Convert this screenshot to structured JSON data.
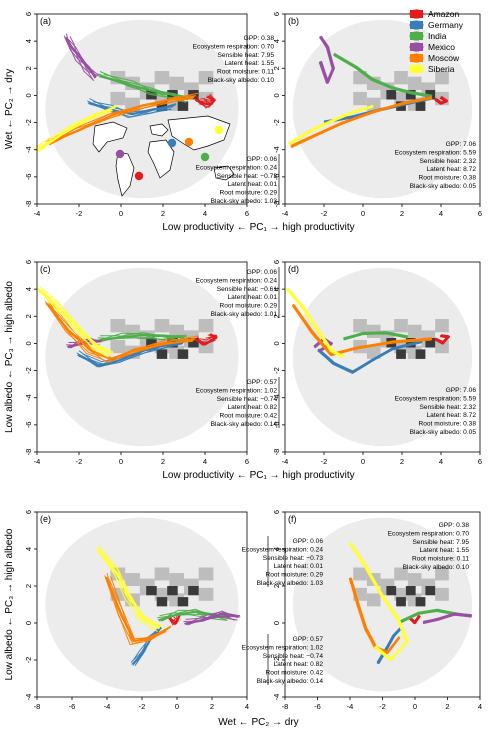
{
  "colors": {
    "Amazon": "#e41a1c",
    "Germany": "#377eb8",
    "India": "#4daf4a",
    "Mexico": "#984ea3",
    "Moscow": "#ff7f00",
    "Siberia": "#ffff33",
    "background_light": "#ececec",
    "background_mid": "#bdbdbd",
    "background_dark": "#3a3a3a"
  },
  "legend": {
    "entries": [
      "Amazon",
      "Germany",
      "India",
      "Mexico",
      "Moscow",
      "Siberia"
    ]
  },
  "axis_labels": {
    "x_pc1": "Low productivity ← PC₁ → high productivity",
    "y_pc2": "Wet ← PC₂ → dry",
    "y_pc3": "Low albedo ← PC₃ → high albedo",
    "x_pc2": "Wet ← PC₂ → dry"
  },
  "annotations": {
    "high_gpp_dry": [
      "GPP: 0.38",
      "Ecosystem respiration: 0.70",
      "Sensible heat: 7.95",
      "Latent heat: 1.55",
      "Root moisture: 0.11",
      "Black-sky albedo: 0.10"
    ],
    "amazon_high": [
      "GPP: 7.06",
      "Ecosystem respiration: 5.59",
      "Sensible heat: 2.32",
      "Latent heat: 8.72",
      "Root moisture: 0.38",
      "Black-sky albedo: 0.05"
    ],
    "siberia_b": [
      "GPP: 0.06",
      "Ecosystem respiration: 0.24",
      "Sensible heat: −0.73",
      "Latent heat: 0.01",
      "Root moisture: 0.29",
      "Black-sky albedo: 1.03"
    ],
    "siberia_c": [
      "GPP: 0.06",
      "Ecosystem respiration: 0.24",
      "Sensible heat: −0.61",
      "Latent heat: 0.01",
      "Root moisture: 0.29",
      "Black-sky albedo: 1.01"
    ],
    "germany_low": [
      "GPP: 0.57",
      "Ecosystem respiration: 1.02",
      "Sensible heat: −0.74",
      "Latent heat: 0.82",
      "Root moisture: 0.42",
      "Black-sky albedo: 0.14"
    ]
  },
  "chart_data": [
    {
      "panel": "(a)",
      "type": "line",
      "xlabel": "Low productivity ← PC₁ → high productivity",
      "ylabel": "Wet ← PC₂ → dry",
      "xlim": [
        -4,
        6
      ],
      "ylim": [
        -8,
        6
      ],
      "xticks": [
        -4,
        -2,
        0,
        2,
        4,
        6
      ],
      "yticks": [
        -8,
        -6,
        -4,
        -2,
        0,
        2,
        4,
        6
      ],
      "inset": "world map with site markers",
      "series": [
        {
          "name": "Amazon",
          "x": [
            3.6,
            3.9,
            4.2,
            4.4,
            4.1
          ],
          "y": [
            -0.3,
            -0.5,
            -0.7,
            -0.4,
            -0.1
          ]
        },
        {
          "name": "Germany",
          "x": [
            -1.5,
            -0.5,
            0.5,
            1.5,
            2.5
          ],
          "y": [
            -0.5,
            -1.0,
            -1.4,
            -1.1,
            -0.8
          ]
        },
        {
          "name": "India",
          "x": [
            -1.0,
            0.5,
            1.5,
            2.5,
            3.2
          ],
          "y": [
            1.5,
            0.8,
            0.3,
            0.0,
            -0.3
          ]
        },
        {
          "name": "Mexico",
          "x": [
            -2.6,
            -2.3,
            -2.0,
            -1.6,
            -1.2
          ],
          "y": [
            4.3,
            3.5,
            2.8,
            2.0,
            1.3
          ]
        },
        {
          "name": "Moscow",
          "x": [
            -3.5,
            -2.0,
            -0.5,
            1.0,
            2.5,
            3.5
          ],
          "y": [
            -3.5,
            -2.5,
            -1.5,
            -0.8,
            -0.3,
            -0.1
          ]
        },
        {
          "name": "Siberia",
          "x": [
            -4.0,
            -3.2,
            -2.3,
            -1.3,
            -0.3
          ],
          "y": [
            -4.0,
            -3.2,
            -2.3,
            -1.5,
            -0.9
          ]
        }
      ]
    },
    {
      "panel": "(b)",
      "type": "line",
      "xlim": [
        -4,
        6
      ],
      "ylim": [
        -8,
        6
      ],
      "xticks": [
        -4,
        -2,
        0,
        2,
        4,
        6
      ],
      "yticks": [
        -8,
        -6,
        -4,
        -2,
        0,
        2,
        4,
        6
      ],
      "series": [
        {
          "name": "Amazon",
          "x": [
            3.7,
            4.0,
            4.3,
            4.0
          ],
          "y": [
            -0.3,
            -0.6,
            -0.4,
            -0.1
          ]
        },
        {
          "name": "Germany",
          "x": [
            -2.0,
            -0.5,
            1.0,
            2.5,
            3.5
          ],
          "y": [
            -2.0,
            -1.6,
            -1.0,
            -0.5,
            -0.2
          ]
        },
        {
          "name": "India",
          "x": [
            -1.5,
            -0.3,
            0.5,
            1.5,
            2.5,
            3.5
          ],
          "y": [
            3.0,
            2.0,
            1.2,
            0.6,
            0.2,
            -0.1
          ]
        },
        {
          "name": "Mexico",
          "x": [
            -2.2,
            -1.8,
            -1.5,
            -1.8,
            -2.2
          ],
          "y": [
            4.3,
            3.5,
            2.0,
            1.0,
            2.5
          ]
        },
        {
          "name": "Moscow",
          "x": [
            -3.7,
            -2.5,
            -1.0,
            0.5,
            2.0,
            3.5
          ],
          "y": [
            -3.8,
            -3.0,
            -2.0,
            -1.2,
            -0.6,
            -0.2
          ]
        },
        {
          "name": "Siberia",
          "x": [
            -3.8,
            -2.5,
            -1.3,
            -0.5,
            0.5
          ],
          "y": [
            -3.6,
            -2.5,
            -1.7,
            -1.2,
            -0.8
          ]
        }
      ]
    },
    {
      "panel": "(c)",
      "type": "line",
      "xlabel": "Low productivity ← PC₁ → high productivity",
      "ylabel": "Low albedo ← PC₃ → high albedo",
      "xlim": [
        -4,
        6
      ],
      "ylim": [
        -8,
        6
      ],
      "xticks": [
        -4,
        -2,
        0,
        2,
        4,
        6
      ],
      "yticks": [
        -8,
        -6,
        -4,
        -2,
        0,
        2,
        4,
        6
      ],
      "series": [
        {
          "name": "Amazon",
          "x": [
            3.6,
            4.0,
            4.5,
            4.2
          ],
          "y": [
            0.3,
            0.0,
            0.4,
            0.6
          ]
        },
        {
          "name": "Germany",
          "x": [
            -2.0,
            -1.0,
            0.0,
            1.0,
            2.0,
            3.0
          ],
          "y": [
            -0.8,
            -1.6,
            -1.2,
            -0.6,
            -0.2,
            0.1
          ]
        },
        {
          "name": "India",
          "x": [
            -1.0,
            0.0,
            1.0,
            2.0,
            3.0
          ],
          "y": [
            0.3,
            0.5,
            0.6,
            0.5,
            0.4
          ]
        },
        {
          "name": "Mexico",
          "x": [
            -2.5,
            -2.0,
            -1.5,
            -1.0
          ],
          "y": [
            -0.2,
            0.0,
            0.2,
            0.1
          ]
        },
        {
          "name": "Moscow",
          "x": [
            -3.5,
            -2.5,
            -1.5,
            -0.5,
            0.5,
            2.0,
            3.5
          ],
          "y": [
            3.0,
            1.0,
            -0.5,
            -1.2,
            -0.6,
            0.0,
            0.3
          ]
        },
        {
          "name": "Siberia",
          "x": [
            -3.9,
            -3.0,
            -2.0,
            -1.2,
            -0.5
          ],
          "y": [
            4.0,
            2.7,
            1.0,
            -0.2,
            -0.8
          ]
        }
      ]
    },
    {
      "panel": "(d)",
      "type": "line",
      "xlim": [
        -4,
        6
      ],
      "ylim": [
        -8,
        6
      ],
      "xticks": [
        -4,
        -2,
        0,
        2,
        4,
        6
      ],
      "yticks": [
        -8,
        -6,
        -4,
        -2,
        0,
        2,
        4,
        6
      ],
      "series": [
        {
          "name": "Amazon",
          "x": [
            3.7,
            4.1,
            4.4,
            4.0
          ],
          "y": [
            0.3,
            0.0,
            0.5,
            0.6
          ]
        },
        {
          "name": "Germany",
          "x": [
            -2.3,
            -1.5,
            -0.5,
            0.5,
            1.5,
            3.0
          ],
          "y": [
            -0.5,
            -1.5,
            -2.1,
            -1.2,
            -0.4,
            0.1
          ]
        },
        {
          "name": "India",
          "x": [
            -1.0,
            0.0,
            1.2,
            2.3
          ],
          "y": [
            0.3,
            0.7,
            0.8,
            0.5
          ]
        },
        {
          "name": "Mexico",
          "x": [
            -2.5,
            -2.0,
            -1.6,
            -2.2
          ],
          "y": [
            -0.3,
            0.3,
            0.0,
            -0.5
          ]
        },
        {
          "name": "Moscow",
          "x": [
            -3.6,
            -2.6,
            -1.6,
            -0.3,
            1.5,
            3.5
          ],
          "y": [
            2.8,
            0.8,
            -0.8,
            -0.3,
            0.1,
            0.3
          ]
        },
        {
          "name": "Siberia",
          "x": [
            -3.9,
            -3.0,
            -2.2,
            -1.6,
            -1.0
          ],
          "y": [
            4.0,
            2.5,
            0.8,
            -0.5,
            -1.0
          ]
        }
      ]
    },
    {
      "panel": "(e)",
      "type": "line",
      "xlabel": "Wet ← PC₂ → dry",
      "ylabel": "Low albedo ← PC₃ → high albedo",
      "xlim": [
        -8,
        4
      ],
      "ylim": [
        -4,
        6
      ],
      "xticks": [
        -8,
        -6,
        -4,
        -2,
        0,
        2,
        4
      ],
      "yticks": [
        -4,
        -2,
        0,
        2,
        4,
        6
      ],
      "series": [
        {
          "name": "Amazon",
          "x": [
            -0.4,
            -0.1,
            0.1
          ],
          "y": [
            0.3,
            0.0,
            0.4
          ]
        },
        {
          "name": "Germany",
          "x": [
            -2.5,
            -2.0,
            -1.5,
            -1.0
          ],
          "y": [
            -2.2,
            -1.6,
            -0.8,
            -0.3
          ]
        },
        {
          "name": "India",
          "x": [
            -1.0,
            0.0,
            1.0,
            2.0,
            3.0
          ],
          "y": [
            0.2,
            0.5,
            0.6,
            0.4,
            0.3
          ]
        },
        {
          "name": "Mexico",
          "x": [
            0.5,
            1.5,
            2.5,
            3.5
          ],
          "y": [
            0.0,
            0.2,
            0.5,
            0.3
          ]
        },
        {
          "name": "Moscow",
          "x": [
            -4.0,
            -3.2,
            -2.5,
            -1.5,
            -0.5
          ],
          "y": [
            2.5,
            0.5,
            -1.0,
            -0.8,
            -0.3
          ]
        },
        {
          "name": "Siberia",
          "x": [
            -4.5,
            -3.5,
            -2.8,
            -2.0,
            -1.0
          ],
          "y": [
            4.0,
            2.8,
            1.5,
            0.3,
            -0.3
          ]
        }
      ]
    },
    {
      "panel": "(f)",
      "type": "line",
      "xlim": [
        -8,
        4
      ],
      "ylim": [
        -4,
        6
      ],
      "xticks": [
        -8,
        -6,
        -4,
        -2,
        0,
        2,
        4
      ],
      "yticks": [
        -4,
        -2,
        0,
        2,
        4,
        6
      ],
      "series": [
        {
          "name": "Amazon",
          "x": [
            -0.4,
            0.0,
            0.3
          ],
          "y": [
            0.3,
            0.0,
            0.4
          ]
        },
        {
          "name": "Germany",
          "x": [
            -2.3,
            -1.8,
            -1.3,
            -0.8
          ],
          "y": [
            -2.2,
            -1.5,
            -0.7,
            -0.2
          ]
        },
        {
          "name": "India",
          "x": [
            -1.0,
            0.2,
            1.4,
            2.6,
            3.4
          ],
          "y": [
            0.0,
            0.5,
            0.7,
            0.5,
            0.4
          ]
        },
        {
          "name": "Mexico",
          "x": [
            0.5,
            1.5,
            2.5,
            3.5
          ],
          "y": [
            0.0,
            0.2,
            0.5,
            0.4
          ]
        },
        {
          "name": "Moscow",
          "x": [
            -4.0,
            -3.5,
            -3.0,
            -2.4,
            -1.7,
            -1.0
          ],
          "y": [
            2.4,
            1.0,
            -0.3,
            -1.3,
            -1.6,
            -0.8
          ]
        },
        {
          "name": "Siberia",
          "x": [
            -4.0,
            -3.0,
            -2.0,
            -1.0,
            -0.5,
            -1.5,
            -2.5
          ],
          "y": [
            4.3,
            3.0,
            1.5,
            0.2,
            -1.0,
            -2.0,
            -1.3
          ]
        }
      ]
    }
  ]
}
